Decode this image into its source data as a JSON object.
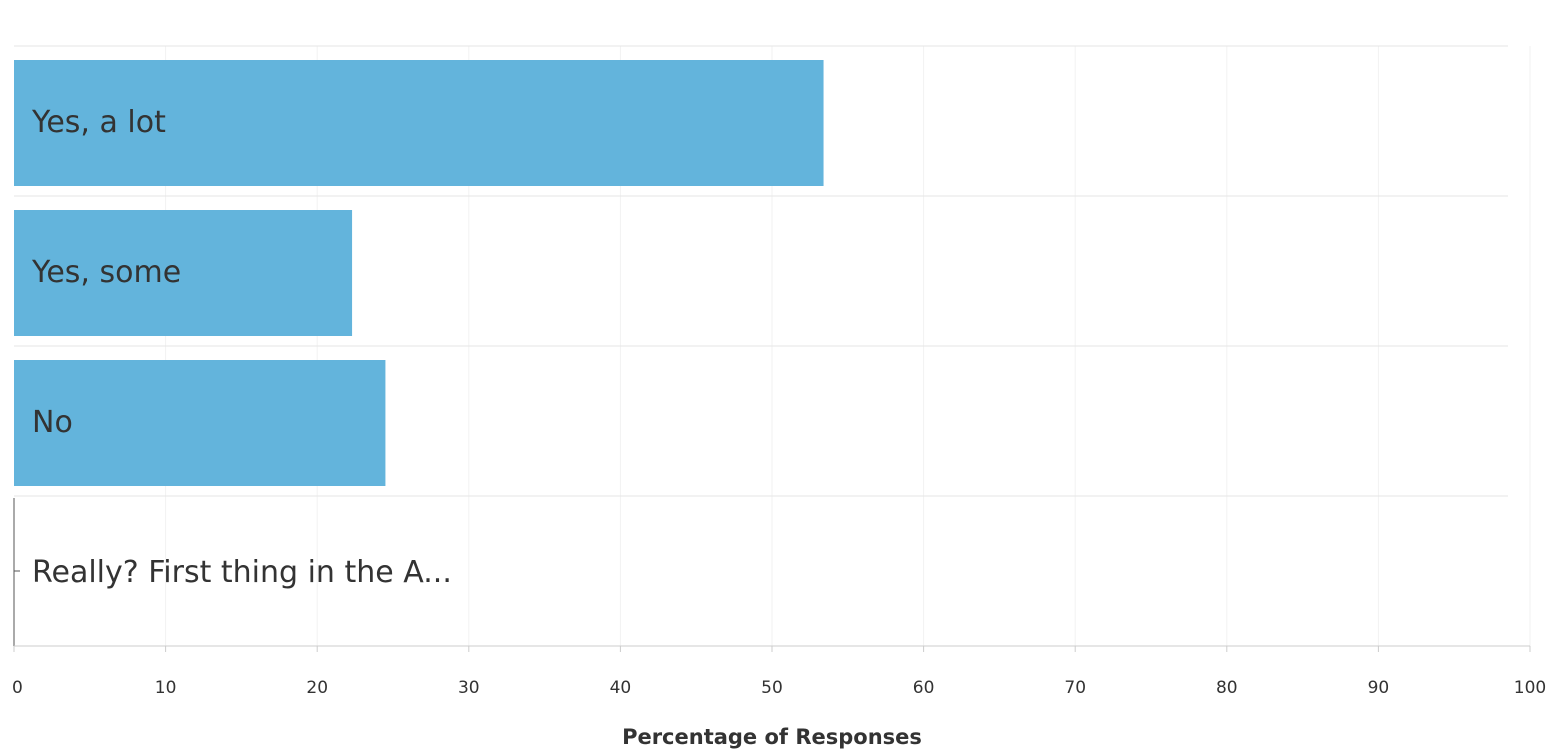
{
  "chart_data": {
    "type": "bar",
    "orientation": "horizontal",
    "categories": [
      "Yes, a lot",
      "Yes, some",
      "No",
      "Really? First thing in the A..."
    ],
    "values": [
      53.4,
      22.3,
      24.5,
      0
    ],
    "xlabel": "Percentage of Responses",
    "xlim": [
      0,
      100
    ],
    "xticks": [
      0,
      10,
      20,
      30,
      40,
      50,
      60,
      70,
      80,
      90,
      100
    ],
    "grid": true,
    "bar_color": "#63b4dc"
  }
}
